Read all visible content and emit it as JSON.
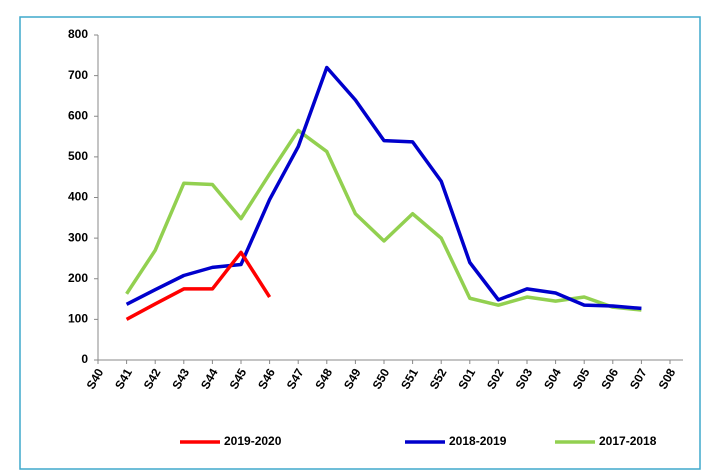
{
  "chart_data": {
    "type": "line",
    "categories": [
      "S40",
      "S41",
      "S42",
      "S43",
      "S44",
      "S45",
      "S46",
      "S47",
      "S48",
      "S49",
      "S50",
      "S51",
      "S52",
      "S01",
      "S02",
      "S03",
      "S04",
      "S05",
      "S06",
      "S07",
      "S08"
    ],
    "series": [
      {
        "name": "2019-2020",
        "color": "#ff0000",
        "values": [
          null,
          100,
          138,
          175,
          175,
          265,
          155,
          null,
          null,
          null,
          null,
          null,
          null,
          null,
          null,
          null,
          null,
          null,
          null,
          null,
          null
        ]
      },
      {
        "name": "2018-2019",
        "color": "#0000cc",
        "values": [
          null,
          137,
          173,
          208,
          228,
          235,
          395,
          525,
          720,
          640,
          540,
          537,
          440,
          240,
          148,
          175,
          165,
          135,
          133,
          127,
          null
        ]
      },
      {
        "name": "2017-2018",
        "color": "#92d050",
        "values": [
          null,
          163,
          270,
          435,
          432,
          348,
          458,
          565,
          513,
          360,
          293,
          360,
          300,
          152,
          135,
          155,
          145,
          155,
          130,
          123,
          null
        ]
      }
    ],
    "ylim": [
      0,
      800
    ],
    "yticks": [
      0,
      100,
      200,
      300,
      400,
      500,
      600,
      700,
      800
    ],
    "grid": false,
    "legend": "bottom"
  }
}
